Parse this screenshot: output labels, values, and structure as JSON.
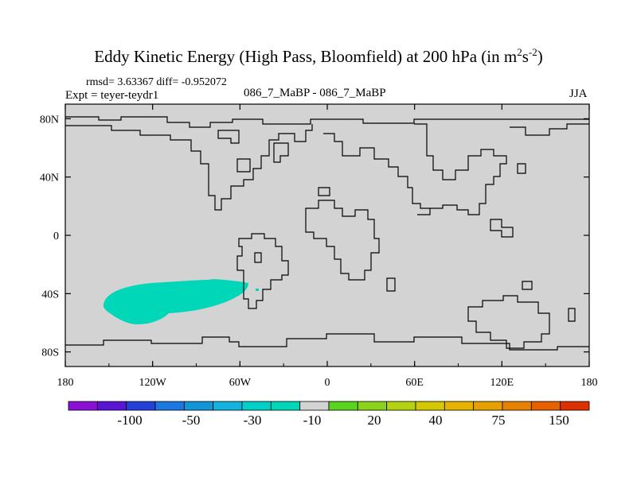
{
  "header": {
    "title_main": "Eddy Kinetic Energy (High Pass, Bloomfield) at 200 hPa (in m",
    "title_sup1": "2",
    "title_s": "s",
    "title_sup2": "-2",
    "title_close": ")",
    "stats": "rmsd= 3.63367 diff= -0.952072",
    "expt": "Expt = teyer-teydr1",
    "case": "086_7_MaBP - 086_7_MaBP",
    "season": "JJA"
  },
  "chart_data": {
    "type": "heatmap",
    "projection": "cylindrical equidistant",
    "x_axis": {
      "min": -180,
      "max": 180,
      "ticks": [
        -180,
        -120,
        -60,
        0,
        60,
        120,
        180
      ],
      "tick_labels": [
        "180",
        "120W",
        "60W",
        "0",
        "60E",
        "120E",
        "180"
      ]
    },
    "y_axis": {
      "min": -90,
      "max": 90,
      "ticks": [
        80,
        40,
        0,
        -40,
        -80
      ],
      "tick_labels": [
        "80N",
        "40N",
        "0",
        "40S",
        "80S"
      ]
    },
    "background_fill_color": "#d3d3d3",
    "anomaly_region": {
      "label": "-10 to -30 band",
      "color": "#00d7b9",
      "center_lon": -120,
      "center_lat": -45,
      "lon_extent": [
        -155,
        -65
      ],
      "lat_extent": [
        -62,
        -32
      ]
    },
    "colorbar": {
      "colors": [
        "#8a10d8",
        "#5a14d6",
        "#2440da",
        "#1a78e0",
        "#1296d8",
        "#10b4de",
        "#00d0c8",
        "#00d7b9",
        "#d3d3d3",
        "#5ad21e",
        "#8cd21a",
        "#b4d210",
        "#d6c800",
        "#e6b400",
        "#e6a000",
        "#e68200",
        "#e66000",
        "#dc3000"
      ],
      "labels": [
        "-100",
        "-50",
        "-30",
        "-10",
        "20",
        "40",
        "75",
        "150"
      ]
    }
  }
}
